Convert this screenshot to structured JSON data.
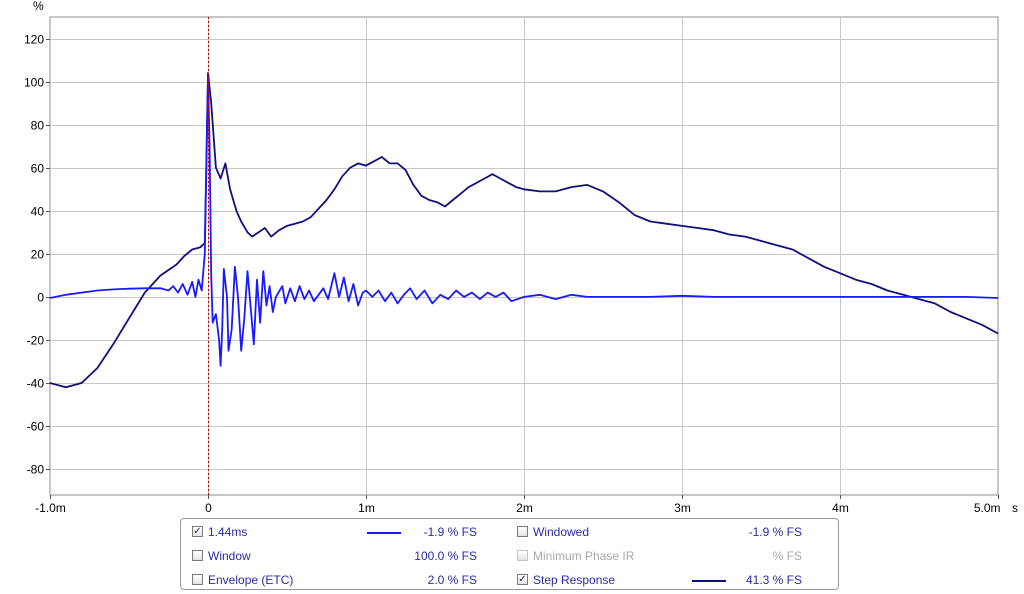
{
  "chart_data": {
    "type": "line",
    "title": "",
    "y_unit_label": "%",
    "x_unit_label": "s",
    "xlim": [
      -1.0,
      5.0
    ],
    "ylim": [
      -92,
      130
    ],
    "x_ticks": [
      {
        "v": -1.0,
        "label": "-1.0m"
      },
      {
        "v": 0,
        "label": "0"
      },
      {
        "v": 1,
        "label": "1m"
      },
      {
        "v": 2,
        "label": "2m"
      },
      {
        "v": 3,
        "label": "3m"
      },
      {
        "v": 4,
        "label": "4m"
      },
      {
        "v": 5.0,
        "label": "5.0m"
      }
    ],
    "y_ticks": [
      {
        "v": 120,
        "label": "120"
      },
      {
        "v": 100,
        "label": "100"
      },
      {
        "v": 80,
        "label": "80"
      },
      {
        "v": 60,
        "label": "60"
      },
      {
        "v": 40,
        "label": "40"
      },
      {
        "v": 20,
        "label": "20"
      },
      {
        "v": 0,
        "label": "0"
      },
      {
        "v": -20,
        "label": "-20"
      },
      {
        "v": -40,
        "label": "-40"
      },
      {
        "v": -60,
        "label": "-60"
      },
      {
        "v": -80,
        "label": "-80"
      }
    ],
    "grid": true,
    "marker_x": 0,
    "series": [
      {
        "name": "1.44ms",
        "color": "#1a1aff",
        "points": [
          [
            -1.0,
            -0.5
          ],
          [
            -0.9,
            1
          ],
          [
            -0.8,
            2
          ],
          [
            -0.7,
            3
          ],
          [
            -0.6,
            3.5
          ],
          [
            -0.5,
            3.8
          ],
          [
            -0.4,
            4
          ],
          [
            -0.3,
            4
          ],
          [
            -0.25,
            3
          ],
          [
            -0.22,
            5
          ],
          [
            -0.19,
            2
          ],
          [
            -0.16,
            6
          ],
          [
            -0.13,
            1
          ],
          [
            -0.1,
            7
          ],
          [
            -0.08,
            0
          ],
          [
            -0.06,
            8
          ],
          [
            -0.04,
            3
          ],
          [
            -0.02,
            20
          ],
          [
            -0.01,
            60
          ],
          [
            0.0,
            102
          ],
          [
            0.01,
            70
          ],
          [
            0.02,
            10
          ],
          [
            0.03,
            -12
          ],
          [
            0.05,
            -8
          ],
          [
            0.07,
            -20
          ],
          [
            0.08,
            -32
          ],
          [
            0.09,
            -15
          ],
          [
            0.1,
            13
          ],
          [
            0.12,
            0
          ],
          [
            0.13,
            -25
          ],
          [
            0.15,
            -15
          ],
          [
            0.17,
            14
          ],
          [
            0.19,
            0
          ],
          [
            0.21,
            -25
          ],
          [
            0.23,
            -10
          ],
          [
            0.25,
            12
          ],
          [
            0.27,
            -5
          ],
          [
            0.29,
            -22
          ],
          [
            0.31,
            8
          ],
          [
            0.33,
            -12
          ],
          [
            0.35,
            12
          ],
          [
            0.37,
            -4
          ],
          [
            0.39,
            5
          ],
          [
            0.41,
            -7
          ],
          [
            0.43,
            0
          ],
          [
            0.47,
            5
          ],
          [
            0.49,
            -3
          ],
          [
            0.52,
            4
          ],
          [
            0.55,
            -2
          ],
          [
            0.58,
            5
          ],
          [
            0.61,
            -1
          ],
          [
            0.64,
            3
          ],
          [
            0.67,
            -2
          ],
          [
            0.7,
            1
          ],
          [
            0.73,
            4
          ],
          [
            0.76,
            -1
          ],
          [
            0.8,
            11
          ],
          [
            0.83,
            0
          ],
          [
            0.86,
            9
          ],
          [
            0.89,
            -2
          ],
          [
            0.92,
            6
          ],
          [
            0.95,
            -4
          ],
          [
            0.98,
            2
          ],
          [
            1.0,
            3
          ],
          [
            1.04,
            0
          ],
          [
            1.08,
            3
          ],
          [
            1.12,
            -2
          ],
          [
            1.16,
            2
          ],
          [
            1.2,
            -3
          ],
          [
            1.24,
            1
          ],
          [
            1.28,
            4
          ],
          [
            1.32,
            -1
          ],
          [
            1.37,
            3
          ],
          [
            1.42,
            -3
          ],
          [
            1.47,
            1
          ],
          [
            1.52,
            -1
          ],
          [
            1.57,
            3
          ],
          [
            1.62,
            0
          ],
          [
            1.67,
            2
          ],
          [
            1.72,
            -1
          ],
          [
            1.77,
            2
          ],
          [
            1.82,
            0
          ],
          [
            1.87,
            2
          ],
          [
            1.92,
            -2
          ],
          [
            2.0,
            0
          ],
          [
            2.1,
            1
          ],
          [
            2.2,
            -1
          ],
          [
            2.3,
            1
          ],
          [
            2.4,
            0
          ],
          [
            2.6,
            0
          ],
          [
            2.8,
            0
          ],
          [
            3.0,
            0.5
          ],
          [
            3.2,
            0
          ],
          [
            3.4,
            0
          ],
          [
            3.6,
            0
          ],
          [
            3.8,
            0
          ],
          [
            4.0,
            0
          ],
          [
            4.2,
            0
          ],
          [
            4.5,
            0
          ],
          [
            4.8,
            0
          ],
          [
            5.0,
            -0.5
          ]
        ]
      },
      {
        "name": "Step Response",
        "color": "#10107a",
        "points": [
          [
            -1.0,
            -40
          ],
          [
            -0.9,
            -42
          ],
          [
            -0.8,
            -40
          ],
          [
            -0.7,
            -33
          ],
          [
            -0.6,
            -22
          ],
          [
            -0.5,
            -10
          ],
          [
            -0.4,
            2
          ],
          [
            -0.3,
            10
          ],
          [
            -0.2,
            15
          ],
          [
            -0.15,
            19
          ],
          [
            -0.1,
            22
          ],
          [
            -0.05,
            23
          ],
          [
            -0.02,
            25
          ],
          [
            0.0,
            104
          ],
          [
            0.02,
            90
          ],
          [
            0.05,
            60
          ],
          [
            0.08,
            55
          ],
          [
            0.11,
            62
          ],
          [
            0.14,
            50
          ],
          [
            0.18,
            40
          ],
          [
            0.21,
            35
          ],
          [
            0.25,
            30
          ],
          [
            0.28,
            28
          ],
          [
            0.32,
            30
          ],
          [
            0.36,
            32
          ],
          [
            0.4,
            28
          ],
          [
            0.45,
            31
          ],
          [
            0.5,
            33
          ],
          [
            0.55,
            34
          ],
          [
            0.6,
            35
          ],
          [
            0.65,
            37
          ],
          [
            0.7,
            41
          ],
          [
            0.75,
            45
          ],
          [
            0.8,
            50
          ],
          [
            0.85,
            56
          ],
          [
            0.9,
            60
          ],
          [
            0.95,
            62
          ],
          [
            1.0,
            61
          ],
          [
            1.05,
            63
          ],
          [
            1.1,
            65
          ],
          [
            1.15,
            62
          ],
          [
            1.2,
            62
          ],
          [
            1.25,
            59
          ],
          [
            1.3,
            52
          ],
          [
            1.35,
            47
          ],
          [
            1.4,
            45
          ],
          [
            1.45,
            44
          ],
          [
            1.5,
            42
          ],
          [
            1.55,
            45
          ],
          [
            1.6,
            48
          ],
          [
            1.65,
            51
          ],
          [
            1.7,
            53
          ],
          [
            1.75,
            55
          ],
          [
            1.8,
            57
          ],
          [
            1.85,
            55
          ],
          [
            1.9,
            53
          ],
          [
            1.95,
            51
          ],
          [
            2.0,
            50
          ],
          [
            2.1,
            49
          ],
          [
            2.2,
            49
          ],
          [
            2.3,
            51
          ],
          [
            2.4,
            52
          ],
          [
            2.5,
            49
          ],
          [
            2.6,
            44
          ],
          [
            2.7,
            38
          ],
          [
            2.8,
            35
          ],
          [
            2.9,
            34
          ],
          [
            3.0,
            33
          ],
          [
            3.1,
            32
          ],
          [
            3.2,
            31
          ],
          [
            3.3,
            29
          ],
          [
            3.4,
            28
          ],
          [
            3.5,
            26
          ],
          [
            3.6,
            24
          ],
          [
            3.7,
            22
          ],
          [
            3.8,
            18
          ],
          [
            3.9,
            14
          ],
          [
            4.0,
            11
          ],
          [
            4.1,
            8
          ],
          [
            4.2,
            6
          ],
          [
            4.3,
            3
          ],
          [
            4.4,
            1
          ],
          [
            4.5,
            -1
          ],
          [
            4.6,
            -3
          ],
          [
            4.7,
            -7
          ],
          [
            4.8,
            -10
          ],
          [
            4.9,
            -13
          ],
          [
            5.0,
            -17
          ]
        ]
      }
    ]
  },
  "legend": {
    "items": [
      {
        "label": "1.44ms",
        "checked": true,
        "enabled": true,
        "line_color": "#1a1aff",
        "value": "-1.9 % FS"
      },
      {
        "label": "Window",
        "checked": false,
        "enabled": true,
        "line_color": "",
        "value": "100.0 % FS"
      },
      {
        "label": "Envelope (ETC)",
        "checked": false,
        "enabled": true,
        "line_color": "",
        "value": "2.0 % FS"
      },
      {
        "label": "Windowed",
        "checked": false,
        "enabled": true,
        "line_color": "",
        "value": "-1.9 % FS"
      },
      {
        "label": "Minimum Phase IR",
        "checked": false,
        "enabled": false,
        "line_color": "",
        "value": "% FS"
      },
      {
        "label": "Step Response",
        "checked": true,
        "enabled": true,
        "line_color": "#10107a",
        "value": "41.3 % FS"
      }
    ]
  }
}
